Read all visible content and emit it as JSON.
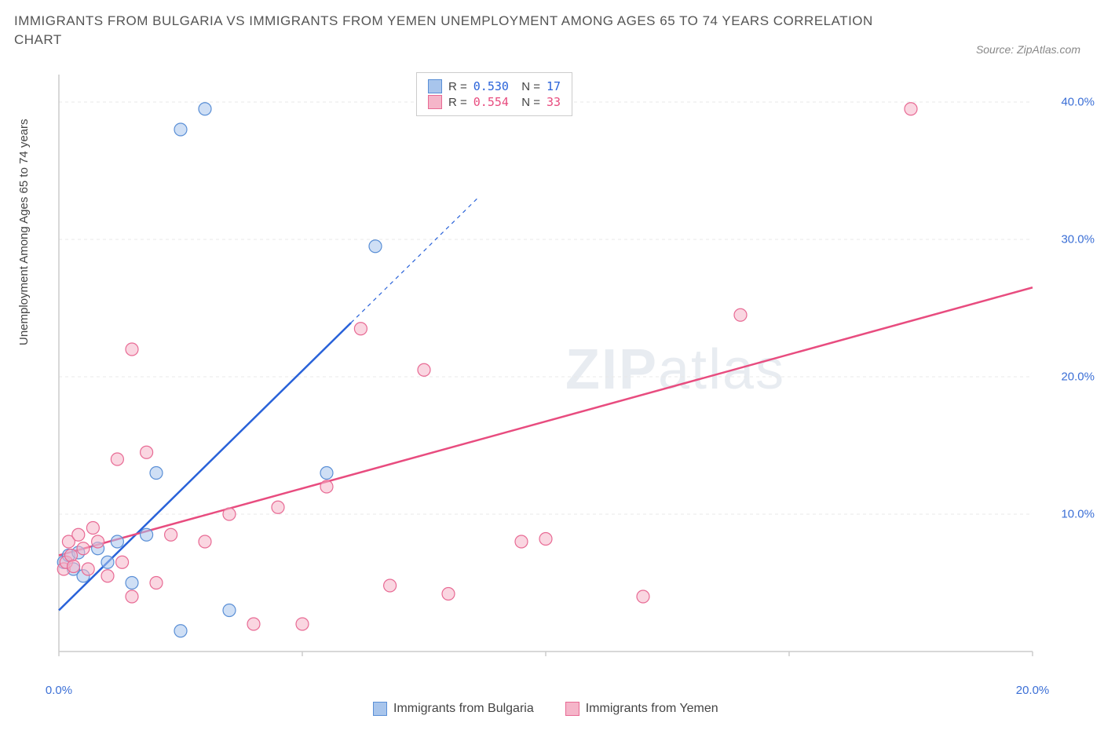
{
  "title": "IMMIGRANTS FROM BULGARIA VS IMMIGRANTS FROM YEMEN UNEMPLOYMENT AMONG AGES 65 TO 74 YEARS CORRELATION CHART",
  "source": "Source: ZipAtlas.com",
  "watermark_bold": "ZIP",
  "watermark_light": "atlas",
  "y_axis_label": "Unemployment Among Ages 65 to 74 years",
  "chart": {
    "type": "scatter",
    "background_color": "#ffffff",
    "grid_color": "#e8e8e8",
    "axis_color": "#cccccc",
    "xlim": [
      0,
      20
    ],
    "ylim": [
      0,
      42
    ],
    "x_ticks": [
      0,
      5,
      10,
      15,
      20
    ],
    "x_tick_labels": [
      "0.0%",
      "",
      "",
      "",
      "20.0%"
    ],
    "y_ticks": [
      10,
      20,
      30,
      40
    ],
    "y_tick_labels": [
      "10.0%",
      "20.0%",
      "30.0%",
      "40.0%"
    ],
    "marker_radius": 8,
    "marker_opacity": 0.55,
    "line_width": 2.5,
    "series": [
      {
        "name": "Immigrants from Bulgaria",
        "color_stroke": "#5a8fd6",
        "color_fill": "#a8c5ec",
        "line_color": "#2962d9",
        "R": "0.530",
        "N": "17",
        "trend": {
          "x1": 0,
          "y1": 3.0,
          "x2": 8.6,
          "y2": 33.0,
          "dash_from_x": 6.0
        },
        "points": [
          [
            0.1,
            6.5
          ],
          [
            0.2,
            7.0
          ],
          [
            0.3,
            6.0
          ],
          [
            0.4,
            7.2
          ],
          [
            0.5,
            5.5
          ],
          [
            0.8,
            7.5
          ],
          [
            1.0,
            6.5
          ],
          [
            1.2,
            8.0
          ],
          [
            1.5,
            5.0
          ],
          [
            1.8,
            8.5
          ],
          [
            2.0,
            13.0
          ],
          [
            2.5,
            1.5
          ],
          [
            3.0,
            39.5
          ],
          [
            2.5,
            38.0
          ],
          [
            3.5,
            3.0
          ],
          [
            6.5,
            29.5
          ],
          [
            5.5,
            13.0
          ]
        ]
      },
      {
        "name": "Immigrants from Yemen",
        "color_stroke": "#e86a94",
        "color_fill": "#f5b5c9",
        "line_color": "#e84c7f",
        "R": "0.554",
        "N": "33",
        "trend": {
          "x1": 0,
          "y1": 7.0,
          "x2": 20,
          "y2": 26.5,
          "dash_from_x": 20
        },
        "points": [
          [
            0.1,
            6.0
          ],
          [
            0.15,
            6.5
          ],
          [
            0.2,
            8.0
          ],
          [
            0.25,
            7.0
          ],
          [
            0.3,
            6.2
          ],
          [
            0.4,
            8.5
          ],
          [
            0.5,
            7.5
          ],
          [
            0.6,
            6.0
          ],
          [
            0.7,
            9.0
          ],
          [
            0.8,
            8.0
          ],
          [
            1.0,
            5.5
          ],
          [
            1.2,
            14.0
          ],
          [
            1.3,
            6.5
          ],
          [
            1.5,
            4.0
          ],
          [
            1.8,
            14.5
          ],
          [
            2.0,
            5.0
          ],
          [
            2.3,
            8.5
          ],
          [
            1.5,
            22.0
          ],
          [
            3.0,
            8.0
          ],
          [
            3.5,
            10.0
          ],
          [
            4.0,
            2.0
          ],
          [
            4.5,
            10.5
          ],
          [
            5.0,
            2.0
          ],
          [
            5.5,
            12.0
          ],
          [
            6.2,
            23.5
          ],
          [
            6.8,
            4.8
          ],
          [
            7.5,
            20.5
          ],
          [
            8.0,
            4.2
          ],
          [
            9.5,
            8.0
          ],
          [
            12.0,
            4.0
          ],
          [
            14.0,
            24.5
          ],
          [
            17.5,
            39.5
          ],
          [
            10.0,
            8.2
          ]
        ]
      }
    ]
  },
  "legend_bottom": [
    {
      "label": "Immigrants from Bulgaria",
      "fill": "#a8c5ec",
      "stroke": "#5a8fd6"
    },
    {
      "label": "Immigrants from Yemen",
      "fill": "#f5b5c9",
      "stroke": "#e86a94"
    }
  ]
}
